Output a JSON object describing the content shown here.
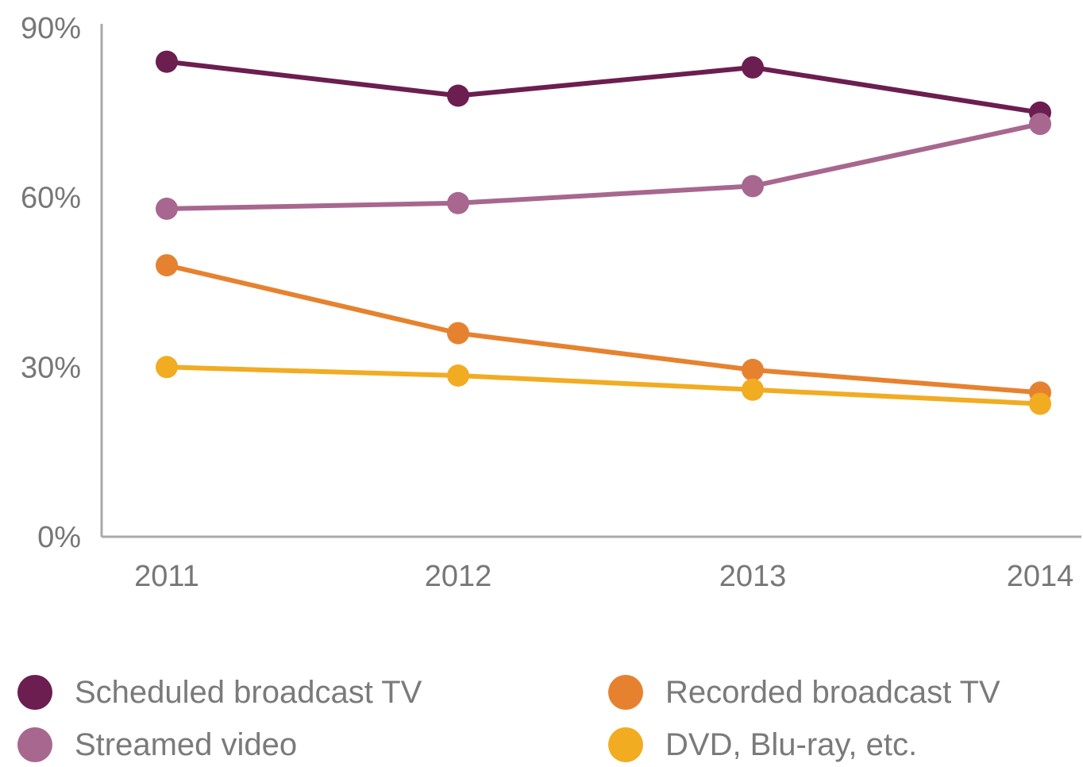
{
  "chart_data": {
    "type": "line",
    "title": "",
    "xlabel": "",
    "ylabel": "",
    "x": [
      "2011",
      "2012",
      "2013",
      "2014"
    ],
    "ylim": [
      0,
      90
    ],
    "yticks": [
      "0%",
      "30%",
      "60%",
      "90%"
    ],
    "grid": false,
    "legend_position": "bottom",
    "series": [
      {
        "name": "Scheduled broadcast TV",
        "values": [
          84,
          78,
          83,
          75
        ],
        "color": "#6b1e4f"
      },
      {
        "name": "Streamed video",
        "values": [
          58,
          59,
          62,
          73
        ],
        "color": "#a7678f"
      },
      {
        "name": "Recorded broadcast TV",
        "values": [
          48,
          36,
          29.5,
          25.5
        ],
        "color": "#e6822f"
      },
      {
        "name": "DVD, Blu-ray, etc.",
        "values": [
          30,
          28.5,
          26,
          23.5
        ],
        "color": "#f1ac22"
      }
    ]
  }
}
